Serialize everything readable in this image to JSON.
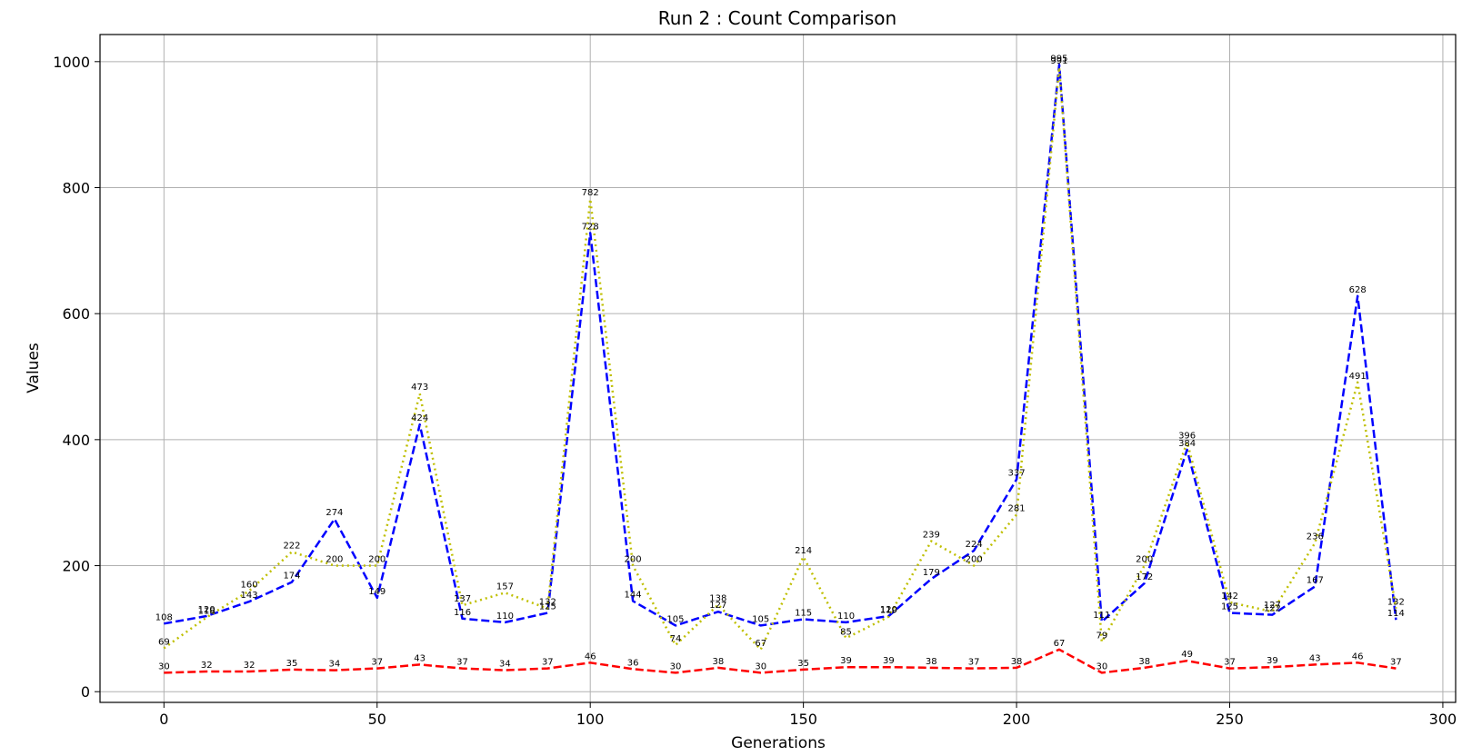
{
  "chart_data": {
    "type": "line",
    "title": "Run 2 : Count Comparison",
    "xlabel": "Generations",
    "ylabel": "Values",
    "xlim": [
      -15,
      303
    ],
    "ylim": [
      -17,
      1043
    ],
    "xticks": [
      0,
      50,
      100,
      150,
      200,
      250,
      300
    ],
    "yticks": [
      0,
      200,
      400,
      600,
      800,
      1000
    ],
    "grid": true,
    "x": [
      0,
      10,
      20,
      30,
      40,
      50,
      60,
      70,
      80,
      90,
      100,
      110,
      120,
      130,
      140,
      150,
      160,
      170,
      180,
      190,
      200,
      210,
      220,
      230,
      240,
      250,
      260,
      270,
      280,
      289
    ],
    "series": [
      {
        "color": "#0000ff",
        "style": "dashed",
        "values": [
          108,
          120,
          143,
          174,
          274,
          149,
          424,
          116,
          110,
          125,
          728,
          144,
          105,
          127,
          105,
          115,
          110,
          120,
          179,
          224,
          337,
          995,
          111,
          172,
          384,
          125,
          122,
          167,
          628,
          114
        ]
      },
      {
        "color": "#bfbf00",
        "style": "dotted",
        "values": [
          69,
          118,
          160,
          222,
          200,
          200,
          473,
          137,
          157,
          132,
          782,
          200,
          74,
          138,
          67,
          214,
          85,
          119,
          239,
          200,
          281,
          991,
          79,
          200,
          396,
          142,
          127,
          236,
          491,
          132
        ]
      },
      {
        "color": "#ff0000",
        "style": "dashed",
        "values": [
          30,
          32,
          32,
          35,
          34,
          37,
          43,
          37,
          34,
          37,
          46,
          36,
          30,
          38,
          30,
          35,
          39,
          39,
          38,
          37,
          38,
          67,
          30,
          38,
          49,
          37,
          39,
          43,
          46,
          37
        ]
      }
    ]
  }
}
